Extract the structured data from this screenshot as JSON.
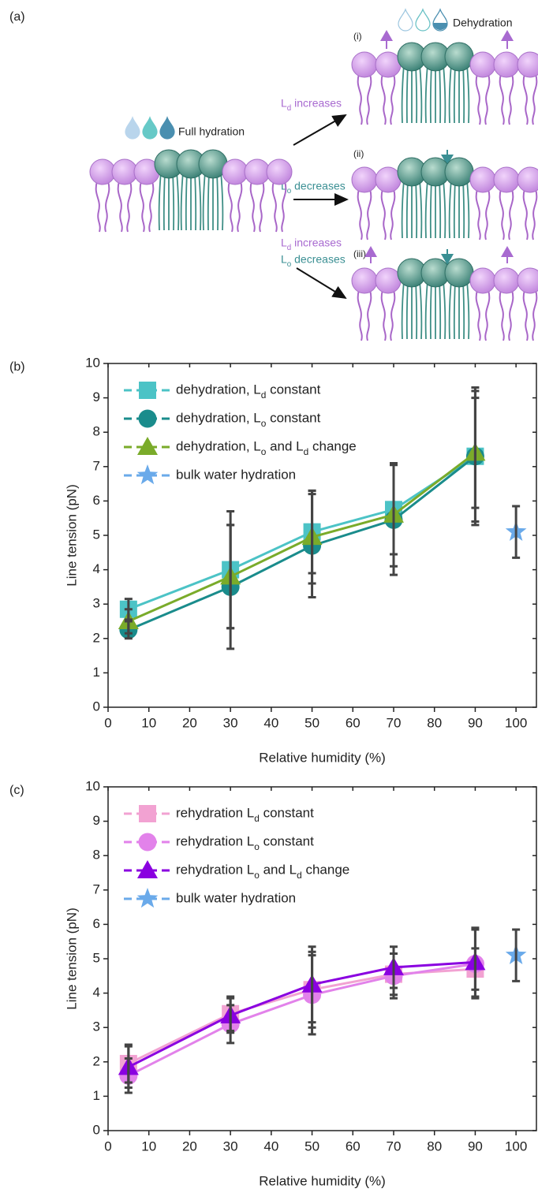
{
  "diagram": {
    "panel_label": "(a)",
    "full_hydration": "Full hydration",
    "dehydration": "Dehydration",
    "state_labels": [
      "(i)",
      "(ii)",
      "(iii)"
    ],
    "arrow_labels": [
      "Ld increases",
      "Lo decreases",
      "Ld increases",
      "Lo decreases"
    ]
  },
  "chart_data": [
    {
      "type": "line",
      "panel_label": "(b)",
      "x_label": "Relative humidity (%)",
      "y_label": "Line tension (pN)",
      "xlim": [
        0,
        105
      ],
      "xticks": [
        0,
        10,
        20,
        30,
        40,
        50,
        60,
        70,
        80,
        90,
        100
      ],
      "ylim": [
        0,
        10
      ],
      "yticks": [
        0,
        1,
        2,
        3,
        4,
        5,
        6,
        7,
        8,
        9,
        10
      ],
      "legend": "upper left",
      "error_color": "#444444",
      "series": [
        {
          "name": "dehydration, Ld constant",
          "color": "#4cc3c6",
          "marker": "square",
          "x": [
            5,
            30,
            50,
            70,
            90
          ],
          "values": [
            2.85,
            4.0,
            5.1,
            5.75,
            7.3
          ],
          "errors": [
            0.3,
            1.7,
            1.2,
            1.3,
            2.0
          ]
        },
        {
          "name": "dehydration, Lo constant",
          "color": "#1a8c8c",
          "marker": "circle",
          "x": [
            5,
            30,
            50,
            70,
            90
          ],
          "values": [
            2.25,
            3.5,
            4.7,
            5.45,
            7.3
          ],
          "errors": [
            0.25,
            1.8,
            1.5,
            1.6,
            1.9
          ]
        },
        {
          "name": "dehydration, Lo and Ld change",
          "color": "#7aab2a",
          "marker": "triangle",
          "x": [
            5,
            30,
            50,
            70,
            90
          ],
          "values": [
            2.5,
            3.8,
            4.95,
            5.6,
            7.4
          ],
          "errors": [
            0.35,
            1.5,
            1.35,
            1.5,
            1.6
          ]
        },
        {
          "name": "bulk water hydration",
          "color": "#6aaaea",
          "marker": "star",
          "x": [
            100
          ],
          "values": [
            5.1
          ],
          "errors": [
            0.75
          ]
        }
      ]
    },
    {
      "type": "line",
      "panel_label": "(c)",
      "x_label": "Relative humidity (%)",
      "y_label": "Line tension (pN)",
      "xlim": [
        0,
        105
      ],
      "xticks": [
        0,
        10,
        20,
        30,
        40,
        50,
        60,
        70,
        80,
        90,
        100
      ],
      "ylim": [
        0,
        10
      ],
      "yticks": [
        0,
        1,
        2,
        3,
        4,
        5,
        6,
        7,
        8,
        9,
        10
      ],
      "legend": "upper left",
      "error_color": "#444444",
      "series": [
        {
          "name": "rehydration Ld constant",
          "color": "#f2a2d2",
          "marker": "square",
          "x": [
            5,
            30,
            50,
            70,
            90
          ],
          "values": [
            1.95,
            3.4,
            4.1,
            4.55,
            4.7
          ],
          "errors": [
            0.55,
            0.5,
            1.1,
            0.6,
            0.6
          ]
        },
        {
          "name": "rehydration Lo constant",
          "color": "#e282ea",
          "marker": "circle",
          "x": [
            5,
            30,
            50,
            70,
            90
          ],
          "values": [
            1.6,
            3.1,
            3.95,
            4.5,
            4.85
          ],
          "errors": [
            0.5,
            0.55,
            1.15,
            0.65,
            1.0
          ]
        },
        {
          "name": "rehydration Lo and Ld change",
          "color": "#8a00e0",
          "marker": "triangle",
          "x": [
            5,
            30,
            50,
            70,
            90
          ],
          "values": [
            1.85,
            3.35,
            4.25,
            4.75,
            4.9
          ],
          "errors": [
            0.6,
            0.5,
            1.1,
            0.6,
            1.0
          ]
        },
        {
          "name": "bulk water hydration",
          "color": "#6aaaea",
          "marker": "star",
          "x": [
            100
          ],
          "values": [
            5.1
          ],
          "errors": [
            0.75
          ]
        }
      ]
    }
  ]
}
